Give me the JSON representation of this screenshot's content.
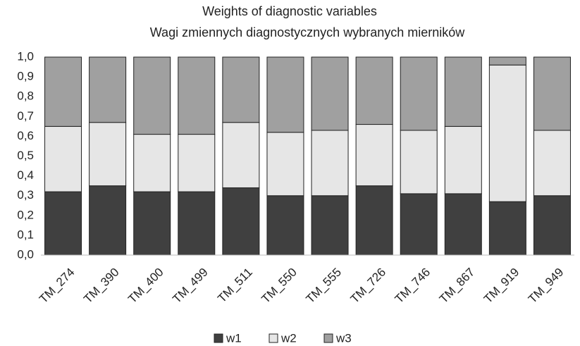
{
  "chart_data": {
    "type": "stacked_bar",
    "title": "Weights of diagnostic variables",
    "subtitle": "Wagi zmiennych diagnostycznych wybranych mierników",
    "categories": [
      "TM_274",
      "TM_390",
      "TM_400",
      "TM_499",
      "TM_511",
      "TM_550",
      "TM_555",
      "TM_726",
      "TM_746",
      "TM_867",
      "TM_919",
      "TM_949"
    ],
    "series": [
      {
        "name": "w1",
        "color": "#404040",
        "values": [
          0.32,
          0.35,
          0.32,
          0.32,
          0.34,
          0.3,
          0.3,
          0.35,
          0.31,
          0.31,
          0.27,
          0.3
        ]
      },
      {
        "name": "w2",
        "color": "#e6e6e6",
        "values": [
          0.33,
          0.32,
          0.29,
          0.29,
          0.33,
          0.32,
          0.33,
          0.31,
          0.32,
          0.34,
          0.69,
          0.33
        ]
      },
      {
        "name": "w3",
        "color": "#a0a0a0",
        "values": [
          0.35,
          0.33,
          0.39,
          0.39,
          0.33,
          0.38,
          0.37,
          0.34,
          0.37,
          0.35,
          0.04,
          0.37
        ]
      }
    ],
    "ylim": [
      0,
      1
    ],
    "yticks": [
      {
        "value": 0,
        "label": "0,0"
      },
      {
        "value": 0.1,
        "label": "0,1"
      },
      {
        "value": 0.2,
        "label": "0,2"
      },
      {
        "value": 0.3,
        "label": "0,3"
      },
      {
        "value": 0.4,
        "label": "0,4"
      },
      {
        "value": 0.5,
        "label": "0,5"
      },
      {
        "value": 0.6,
        "label": "0,6"
      },
      {
        "value": 0.7,
        "label": "0,7"
      },
      {
        "value": 0.8,
        "label": "0,8"
      },
      {
        "value": 0.9,
        "label": "0,9"
      },
      {
        "value": 1,
        "label": "1,0"
      }
    ],
    "grid": false,
    "legend": "bottom"
  }
}
